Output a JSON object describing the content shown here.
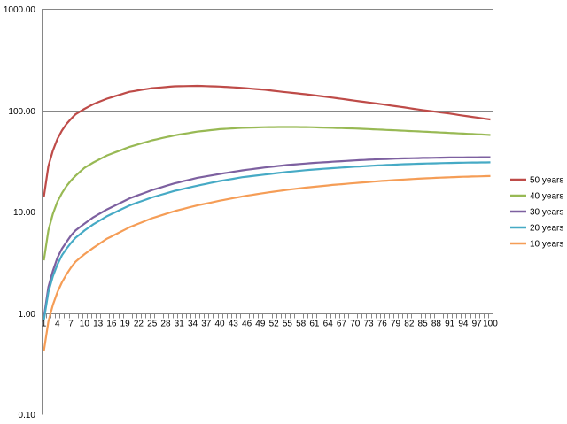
{
  "chart_data": {
    "type": "line",
    "title": "",
    "xlabel": "",
    "ylabel": "",
    "y_scale": "log",
    "ylim": [
      0.1,
      1000
    ],
    "y_ticks": [
      "0.10",
      "1.00",
      "10.00",
      "100.00",
      "1000.00"
    ],
    "y_tick_values": [
      0.1,
      1,
      10,
      100,
      1000
    ],
    "xlim": [
      1,
      100
    ],
    "x_ticks": [
      1,
      4,
      7,
      10,
      13,
      16,
      19,
      22,
      25,
      28,
      31,
      34,
      37,
      40,
      43,
      46,
      49,
      52,
      55,
      58,
      61,
      64,
      67,
      70,
      73,
      76,
      79,
      82,
      85,
      88,
      91,
      94,
      97,
      100
    ],
    "grid": "horizontal",
    "legend_position": "right",
    "series": [
      {
        "name": "50 years",
        "color": "#BE4B48",
        "points": [
          [
            1,
            14
          ],
          [
            2,
            28
          ],
          [
            3,
            40
          ],
          [
            4,
            52
          ],
          [
            5,
            63
          ],
          [
            6,
            73
          ],
          [
            7,
            82
          ],
          [
            8,
            91
          ],
          [
            10,
            103
          ],
          [
            12,
            115
          ],
          [
            15,
            130
          ],
          [
            20,
            152
          ],
          [
            25,
            165
          ],
          [
            30,
            172
          ],
          [
            35,
            174
          ],
          [
            40,
            171
          ],
          [
            45,
            166
          ],
          [
            50,
            159
          ],
          [
            55,
            150
          ],
          [
            60,
            142
          ],
          [
            65,
            133
          ],
          [
            70,
            124
          ],
          [
            75,
            116
          ],
          [
            80,
            108
          ],
          [
            85,
            100
          ],
          [
            90,
            94
          ],
          [
            95,
            87
          ],
          [
            100,
            81
          ]
        ]
      },
      {
        "name": "40 years",
        "color": "#98B954",
        "points": [
          [
            1,
            3.3
          ],
          [
            2,
            6.5
          ],
          [
            3,
            9.5
          ],
          [
            4,
            12.5
          ],
          [
            5,
            15.2
          ],
          [
            6,
            17.8
          ],
          [
            7,
            20.2
          ],
          [
            8,
            22.5
          ],
          [
            10,
            27
          ],
          [
            12,
            30.5
          ],
          [
            15,
            35.8
          ],
          [
            20,
            43.5
          ],
          [
            25,
            50.5
          ],
          [
            30,
            56.5
          ],
          [
            35,
            61.5
          ],
          [
            40,
            65
          ],
          [
            45,
            67
          ],
          [
            50,
            68
          ],
          [
            55,
            68.3
          ],
          [
            60,
            68
          ],
          [
            65,
            67
          ],
          [
            70,
            66
          ],
          [
            75,
            64.5
          ],
          [
            80,
            63
          ],
          [
            85,
            61.5
          ],
          [
            90,
            60
          ],
          [
            95,
            58.5
          ],
          [
            100,
            57
          ]
        ]
      },
      {
        "name": "30 years",
        "color": "#7D60A0",
        "points": [
          [
            1,
            0.9
          ],
          [
            2,
            1.8
          ],
          [
            3,
            2.6
          ],
          [
            4,
            3.5
          ],
          [
            5,
            4.3
          ],
          [
            6,
            5
          ],
          [
            7,
            5.8
          ],
          [
            8,
            6.5
          ],
          [
            10,
            7.6
          ],
          [
            12,
            8.8
          ],
          [
            15,
            10.5
          ],
          [
            20,
            13.5
          ],
          [
            25,
            16.3
          ],
          [
            30,
            19
          ],
          [
            35,
            21.5
          ],
          [
            40,
            23.5
          ],
          [
            45,
            25.5
          ],
          [
            50,
            27.2
          ],
          [
            55,
            28.8
          ],
          [
            60,
            30
          ],
          [
            65,
            31
          ],
          [
            70,
            32
          ],
          [
            75,
            32.8
          ],
          [
            80,
            33.4
          ],
          [
            85,
            33.8
          ],
          [
            90,
            34.1
          ],
          [
            95,
            34.3
          ],
          [
            100,
            34.4
          ]
        ]
      },
      {
        "name": "20 years",
        "color": "#46AAC5",
        "points": [
          [
            1,
            0.85
          ],
          [
            2,
            1.6
          ],
          [
            3,
            2.3
          ],
          [
            4,
            3
          ],
          [
            5,
            3.7
          ],
          [
            6,
            4.3
          ],
          [
            7,
            4.9
          ],
          [
            8,
            5.5
          ],
          [
            10,
            6.5
          ],
          [
            12,
            7.5
          ],
          [
            15,
            9
          ],
          [
            20,
            11.5
          ],
          [
            25,
            13.8
          ],
          [
            30,
            16
          ],
          [
            35,
            18
          ],
          [
            40,
            20
          ],
          [
            45,
            21.8
          ],
          [
            50,
            23.2
          ],
          [
            55,
            24.6
          ],
          [
            60,
            25.8
          ],
          [
            65,
            26.8
          ],
          [
            70,
            27.7
          ],
          [
            75,
            28.5
          ],
          [
            80,
            29.2
          ],
          [
            85,
            29.7
          ],
          [
            90,
            30.1
          ],
          [
            95,
            30.4
          ],
          [
            100,
            30.6
          ]
        ]
      },
      {
        "name": "10 years",
        "color": "#F59D56",
        "points": [
          [
            1,
            0.42
          ],
          [
            2,
            0.82
          ],
          [
            3,
            1.2
          ],
          [
            4,
            1.6
          ],
          [
            5,
            2
          ],
          [
            6,
            2.4
          ],
          [
            7,
            2.8
          ],
          [
            8,
            3.2
          ],
          [
            10,
            3.8
          ],
          [
            12,
            4.4
          ],
          [
            15,
            5.4
          ],
          [
            20,
            7
          ],
          [
            25,
            8.6
          ],
          [
            30,
            10.1
          ],
          [
            35,
            11.5
          ],
          [
            40,
            12.8
          ],
          [
            45,
            14.1
          ],
          [
            50,
            15.3
          ],
          [
            55,
            16.4
          ],
          [
            60,
            17.4
          ],
          [
            65,
            18.3
          ],
          [
            70,
            19.1
          ],
          [
            75,
            19.9
          ],
          [
            80,
            20.6
          ],
          [
            85,
            21.2
          ],
          [
            90,
            21.7
          ],
          [
            95,
            22.1
          ],
          [
            100,
            22.4
          ]
        ]
      }
    ]
  }
}
